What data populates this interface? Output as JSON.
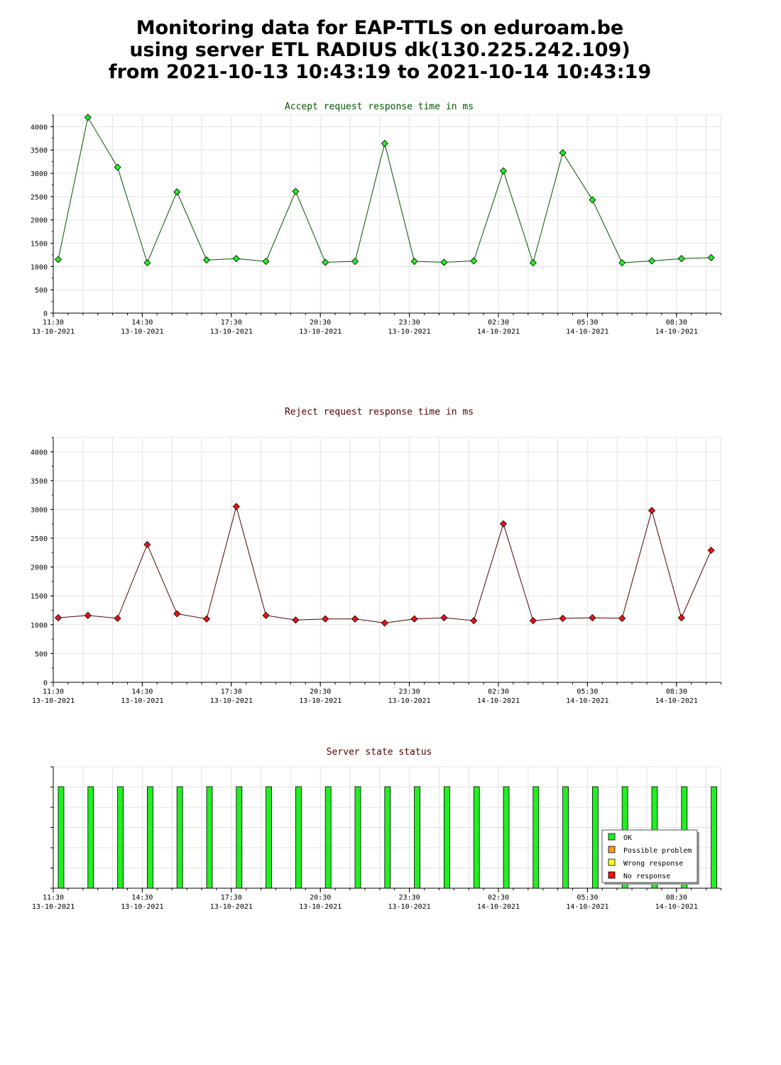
{
  "page": {
    "title_lines": [
      "Monitoring data for EAP-TTLS on eduroam.be",
      "using server ETL RADIUS dk(130.225.242.109)",
      "from 2021-10-13 10:43:19 to 2021-10-14 10:43:19"
    ]
  },
  "chart_data": [
    {
      "type": "line",
      "title": "Accept request response time in ms",
      "title_color": "#005500",
      "line_color": "#005500",
      "marker_color": "#22ee22",
      "ylim": [
        0,
        4250
      ],
      "yticks": [
        0,
        500,
        1000,
        1500,
        2000,
        2500,
        3000,
        3500,
        4000
      ],
      "x_tick_labels": [
        {
          "time": "11:30",
          "date": "13-10-2021"
        },
        {
          "time": "14:30",
          "date": "13-10-2021"
        },
        {
          "time": "17:30",
          "date": "13-10-2021"
        },
        {
          "time": "20:30",
          "date": "13-10-2021"
        },
        {
          "time": "23:30",
          "date": "13-10-2021"
        },
        {
          "time": "02:30",
          "date": "14-10-2021"
        },
        {
          "time": "05:30",
          "date": "14-10-2021"
        },
        {
          "time": "08:30",
          "date": "14-10-2021"
        }
      ],
      "grid": true,
      "values": [
        1150,
        4200,
        3130,
        1080,
        2600,
        1140,
        1170,
        1110,
        2610,
        1090,
        1110,
        3640,
        1110,
        1090,
        1120,
        3050,
        1080,
        3440,
        2430,
        1080,
        1120,
        1170,
        1190
      ]
    },
    {
      "type": "line",
      "title": "Reject request response time in ms",
      "title_color": "#550000",
      "line_color": "#550000",
      "marker_color": "#ee1111",
      "ylim": [
        0,
        4250
      ],
      "yticks": [
        0,
        500,
        1000,
        1500,
        2000,
        2500,
        3000,
        3500,
        4000
      ],
      "x_tick_labels": [
        {
          "time": "11:30",
          "date": "13-10-2021"
        },
        {
          "time": "14:30",
          "date": "13-10-2021"
        },
        {
          "time": "17:30",
          "date": "13-10-2021"
        },
        {
          "time": "20:30",
          "date": "13-10-2021"
        },
        {
          "time": "23:30",
          "date": "13-10-2021"
        },
        {
          "time": "02:30",
          "date": "14-10-2021"
        },
        {
          "time": "05:30",
          "date": "14-10-2021"
        },
        {
          "time": "08:30",
          "date": "14-10-2021"
        }
      ],
      "grid": true,
      "values": [
        1120,
        1160,
        1110,
        2390,
        1190,
        1100,
        3050,
        1160,
        1080,
        1100,
        1100,
        1030,
        1100,
        1120,
        1070,
        2750,
        1070,
        1110,
        1120,
        1110,
        2980,
        1120,
        2290
      ]
    },
    {
      "type": "bar",
      "title": "Server state status",
      "title_color": "#550000",
      "x_tick_labels": [
        {
          "time": "11:30",
          "date": "13-10-2021"
        },
        {
          "time": "14:30",
          "date": "13-10-2021"
        },
        {
          "time": "17:30",
          "date": "13-10-2021"
        },
        {
          "time": "20:30",
          "date": "13-10-2021"
        },
        {
          "time": "23:30",
          "date": "13-10-2021"
        },
        {
          "time": "02:30",
          "date": "14-10-2021"
        },
        {
          "time": "05:30",
          "date": "14-10-2021"
        },
        {
          "time": "08:30",
          "date": "14-10-2021"
        }
      ],
      "grid": true,
      "legend_position": "bottom-right",
      "legend": [
        {
          "label": "OK",
          "color": "#22ee22"
        },
        {
          "label": "Possible problem",
          "color": "#ff9922"
        },
        {
          "label": "Wrong response",
          "color": "#ffff22"
        },
        {
          "label": "No response",
          "color": "#ee1111"
        }
      ],
      "states": [
        "OK",
        "OK",
        "OK",
        "OK",
        "OK",
        "OK",
        "OK",
        "OK",
        "OK",
        "OK",
        "OK",
        "OK",
        "OK",
        "OK",
        "OK",
        "OK",
        "OK",
        "OK",
        "OK",
        "OK",
        "OK",
        "OK",
        "OK"
      ]
    }
  ]
}
